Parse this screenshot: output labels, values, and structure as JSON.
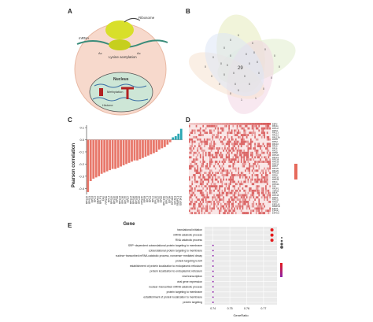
{
  "panels": {
    "a": {
      "letter": "A",
      "labels": {
        "ribosome": "Ribosome",
        "mrna": "mRNA",
        "lysine": "Lysine acetylation",
        "nucleus": "Nucleus",
        "histone": "Histone",
        "methylation": "Methylation",
        "ac": "Ac"
      }
    },
    "b": {
      "letter": "B",
      "center_value": "29",
      "region_values": [
        "0",
        "0",
        "0",
        "0",
        "0",
        "0",
        "0",
        "1",
        "1",
        "0",
        "0",
        "0",
        "0",
        "0",
        "0",
        "0",
        "0",
        "0",
        "0",
        "0",
        "0",
        "0",
        "0",
        "0",
        "0",
        "0",
        "0",
        "0",
        "0",
        "0"
      ]
    },
    "c": {
      "letter": "C",
      "ylabel": "Pearson correlation",
      "xlabel": "Gene"
    },
    "d": {
      "letter": "D",
      "genes": [
        "EEF2",
        "RPL11",
        "RPS17",
        "RPS3",
        "RPL13",
        "RPL12",
        "RPL13A",
        "RPS5",
        "RPS2",
        "RPL10",
        "RPL9",
        "RPL6",
        "RPL3",
        "RPS8",
        "RPS4X",
        "RPL19",
        "RPS18",
        "RPS16",
        "RPS14",
        "RPS7",
        "RPL35",
        "RPL26",
        "RPS13",
        "RPS6",
        "RPS10",
        "RPS19",
        "RPL4",
        "RPS3A",
        "FAU",
        "RPLP1",
        "UBA52",
        "RPL5",
        "RPS15",
        "RPS3",
        "RPS11",
        "RPS9",
        "EEF1A1",
        "PABPC1",
        "EIF3A",
        "EIF4A1",
        "EIF4G2"
      ]
    },
    "e": {
      "letter": "E",
      "xlabel": "GeneRatio",
      "x_ticks": [
        "0.74",
        "0.75",
        "0.76",
        "0.77"
      ],
      "terms": [
        "translational initiation",
        "mRNA catabolic process",
        "RNA catabolic process",
        "SRP−dependent cotranslational protein targeting to membrane",
        "cotranslational protein targeting to membrane",
        "nuclear−transcribed mRNA catabolic process, nonsense−mediated decay",
        "protein targeting to ER",
        "establishment of protein localization to endoplasmic reticulum",
        "protein localization to endoplasmic reticulum",
        "viral transcription",
        "viral gene expression",
        "nuclear−transcribed mRNA catabolic process",
        "protein targeting to membrane",
        "establishment of protein localization to membrane",
        "protein targeting"
      ]
    }
  },
  "chart_data": [
    {
      "type": "bar",
      "title": "",
      "xlabel": "Gene",
      "ylabel": "Pearson correlation",
      "ylim": [
        -0.45,
        0.12
      ],
      "y_ticks": [
        0.1,
        0.0,
        -0.1,
        -0.2,
        -0.3,
        -0.4
      ],
      "categories": [
        "RPS15",
        "RPS11",
        "RPS3",
        "RPL5",
        "UBA52",
        "RPLP1",
        "FAU",
        "RPS3A",
        "RPL4",
        "RPS19",
        "RPS10",
        "RPS6",
        "RPS13",
        "RPL26",
        "RPL35",
        "RPS7",
        "RPS14",
        "RPS16",
        "RPS18",
        "RPL19",
        "RPS4X",
        "RPS8",
        "RPL3",
        "RPL6",
        "RPL9",
        "RPL10",
        "RPS2",
        "RPS5",
        "RPL13A",
        "RPL12",
        "EIF3A",
        "EIF4G2",
        "EIF4A1",
        "PABPC1",
        "EEF1A1"
      ],
      "values": [
        -0.43,
        -0.34,
        -0.32,
        -0.31,
        -0.3,
        -0.28,
        -0.27,
        -0.26,
        -0.25,
        -0.24,
        -0.24,
        -0.23,
        -0.22,
        -0.21,
        -0.2,
        -0.19,
        -0.18,
        -0.17,
        -0.17,
        -0.16,
        -0.15,
        -0.14,
        -0.13,
        -0.12,
        -0.11,
        -0.1,
        -0.08,
        -0.07,
        -0.06,
        -0.04,
        -0.02,
        0.02,
        0.03,
        0.05,
        0.09
      ],
      "colors": {
        "negative": "#e8776a",
        "positive": "#2aa7b3"
      },
      "grid": false
    },
    {
      "type": "scatter",
      "xlabel": "GeneRatio",
      "ylabel": "",
      "xlim": [
        0.735,
        0.778
      ],
      "x_ticks": [
        0.74,
        0.75,
        0.76,
        0.77
      ],
      "categories": [
        "translational initiation",
        "mRNA catabolic process",
        "RNA catabolic process",
        "SRP−dependent cotranslational protein targeting to membrane",
        "cotranslational protein targeting to membrane",
        "nuclear−transcribed mRNA catabolic process, nonsense−mediated decay",
        "protein targeting to ER",
        "establishment of protein localization to endoplasmic reticulum",
        "protein localization to endoplasmic reticulum",
        "viral transcription",
        "viral gene expression",
        "nuclear−transcribed mRNA catabolic process",
        "protein targeting to membrane",
        "establishment of protein localization to membrane",
        "protein targeting"
      ],
      "x": [
        0.775,
        0.775,
        0.775,
        0.74,
        0.74,
        0.74,
        0.74,
        0.74,
        0.74,
        0.74,
        0.74,
        0.74,
        0.74,
        0.74,
        0.74
      ],
      "sizes": [
        4,
        4,
        4,
        1,
        1,
        1,
        1,
        1,
        1,
        1,
        1,
        1,
        1,
        1,
        1
      ],
      "colors": {
        "high": "#e41a1c",
        "low": "#8e24aa"
      },
      "legend": "right",
      "grid": true
    }
  ]
}
